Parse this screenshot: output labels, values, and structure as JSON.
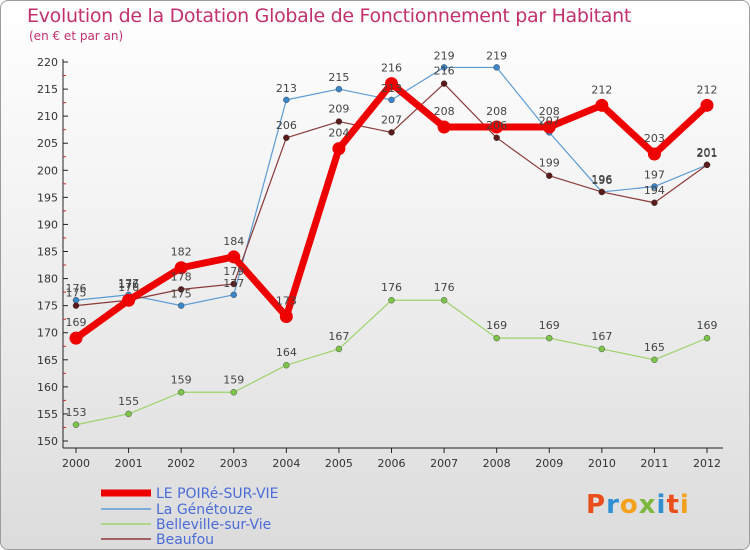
{
  "header": {
    "title": "Evolution de la Dotation Globale de Fonctionnement par Habitant",
    "subtitle": "(en € et par an)"
  },
  "brand": {
    "letters": [
      "P",
      "r",
      "o",
      "x",
      "i",
      "t",
      "i"
    ],
    "colors": [
      "#e94e1b",
      "#2f8fd1",
      "#f4a11c",
      "#7cb83e",
      "#2f8fd1",
      "#e94e1b",
      "#f4a11c"
    ]
  },
  "chart_data": {
    "type": "line",
    "title": "Evolution de la Dotation Globale de Fonctionnement par Habitant",
    "subtitle": "(en € et par an)",
    "xlabel": "",
    "ylabel": "",
    "ylim": [
      150,
      220
    ],
    "yticks": [
      150,
      155,
      160,
      165,
      170,
      175,
      180,
      185,
      190,
      195,
      200,
      205,
      210,
      215,
      220
    ],
    "x": [
      "2000",
      "2001",
      "2002",
      "2003",
      "2004",
      "2005",
      "2006",
      "2007",
      "2008",
      "2009",
      "2010",
      "2011",
      "2012"
    ],
    "grid": false,
    "legend_position": "bottom-left",
    "series": [
      {
        "name": "La Génétouze",
        "color": "#5b9bd5",
        "point": "#3a86c8",
        "width": 1.2,
        "values": [
          176,
          177,
          175,
          177,
          213,
          215,
          213,
          219,
          219,
          207,
          196,
          197,
          201
        ],
        "labels": [
          "176",
          "177",
          "175",
          "177",
          "213",
          "215",
          "213",
          "219",
          "219",
          "207",
          "196",
          "197",
          "201"
        ]
      },
      {
        "name": "Belleville-sur-Vie",
        "color": "#9ed36a",
        "point": "#7cc44a",
        "width": 1.2,
        "values": [
          153,
          155,
          159,
          159,
          164,
          167,
          176,
          176,
          169,
          169,
          167,
          165,
          169
        ],
        "labels": [
          "153",
          "155",
          "159",
          "159",
          "164",
          "167",
          "176",
          "176",
          "169",
          "169",
          "167",
          "165",
          "169"
        ]
      },
      {
        "name": "Beaufou",
        "color": "#8b3a3a",
        "point": "#5a1a1a",
        "width": 1.2,
        "values": [
          175,
          176,
          178,
          179,
          206,
          209,
          207,
          216,
          206,
          199,
          196,
          194,
          201
        ],
        "labels": [
          "175",
          "176",
          "178",
          "179",
          "206",
          "209",
          "207",
          "216",
          "206",
          "199",
          "196",
          "194",
          "201"
        ]
      },
      {
        "name": "LE POIRé-SUR-VIE",
        "color": "#ee0000",
        "point": "#ee0000",
        "width": 7,
        "values": [
          169,
          176,
          182,
          184,
          173,
          204,
          216,
          208,
          208,
          208,
          212,
          203,
          212
        ],
        "labels": [
          "169",
          "176",
          "182",
          "184",
          "173",
          "204",
          "216",
          "208",
          "208",
          "208",
          "212",
          "203",
          "212"
        ]
      }
    ],
    "legend": [
      "LE POIRé-SUR-VIE",
      "La Génétouze",
      "Belleville-sur-Vie",
      "Beaufou"
    ]
  }
}
